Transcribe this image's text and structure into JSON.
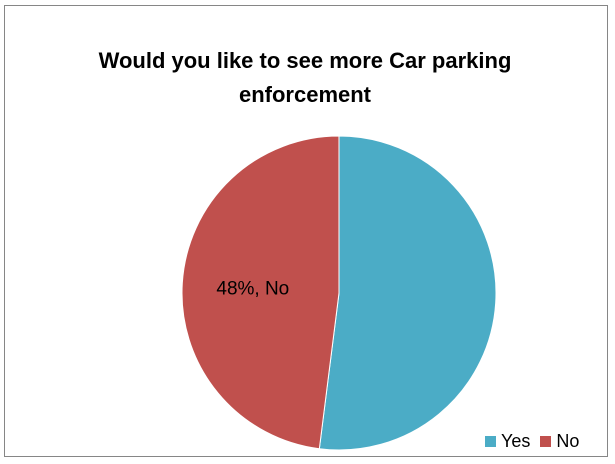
{
  "chart_data": {
    "type": "pie",
    "title": "Would you like to see more Car parking enforcement",
    "categories": [
      "Yes",
      "No"
    ],
    "values": [
      52,
      48
    ],
    "colors": [
      "#4BACC6",
      "#C0504D"
    ],
    "data_labels": [
      {
        "category": "No",
        "text": "48%, No"
      }
    ],
    "legend": {
      "placement": "bottom-right",
      "entries": [
        "Yes",
        "No"
      ]
    }
  }
}
